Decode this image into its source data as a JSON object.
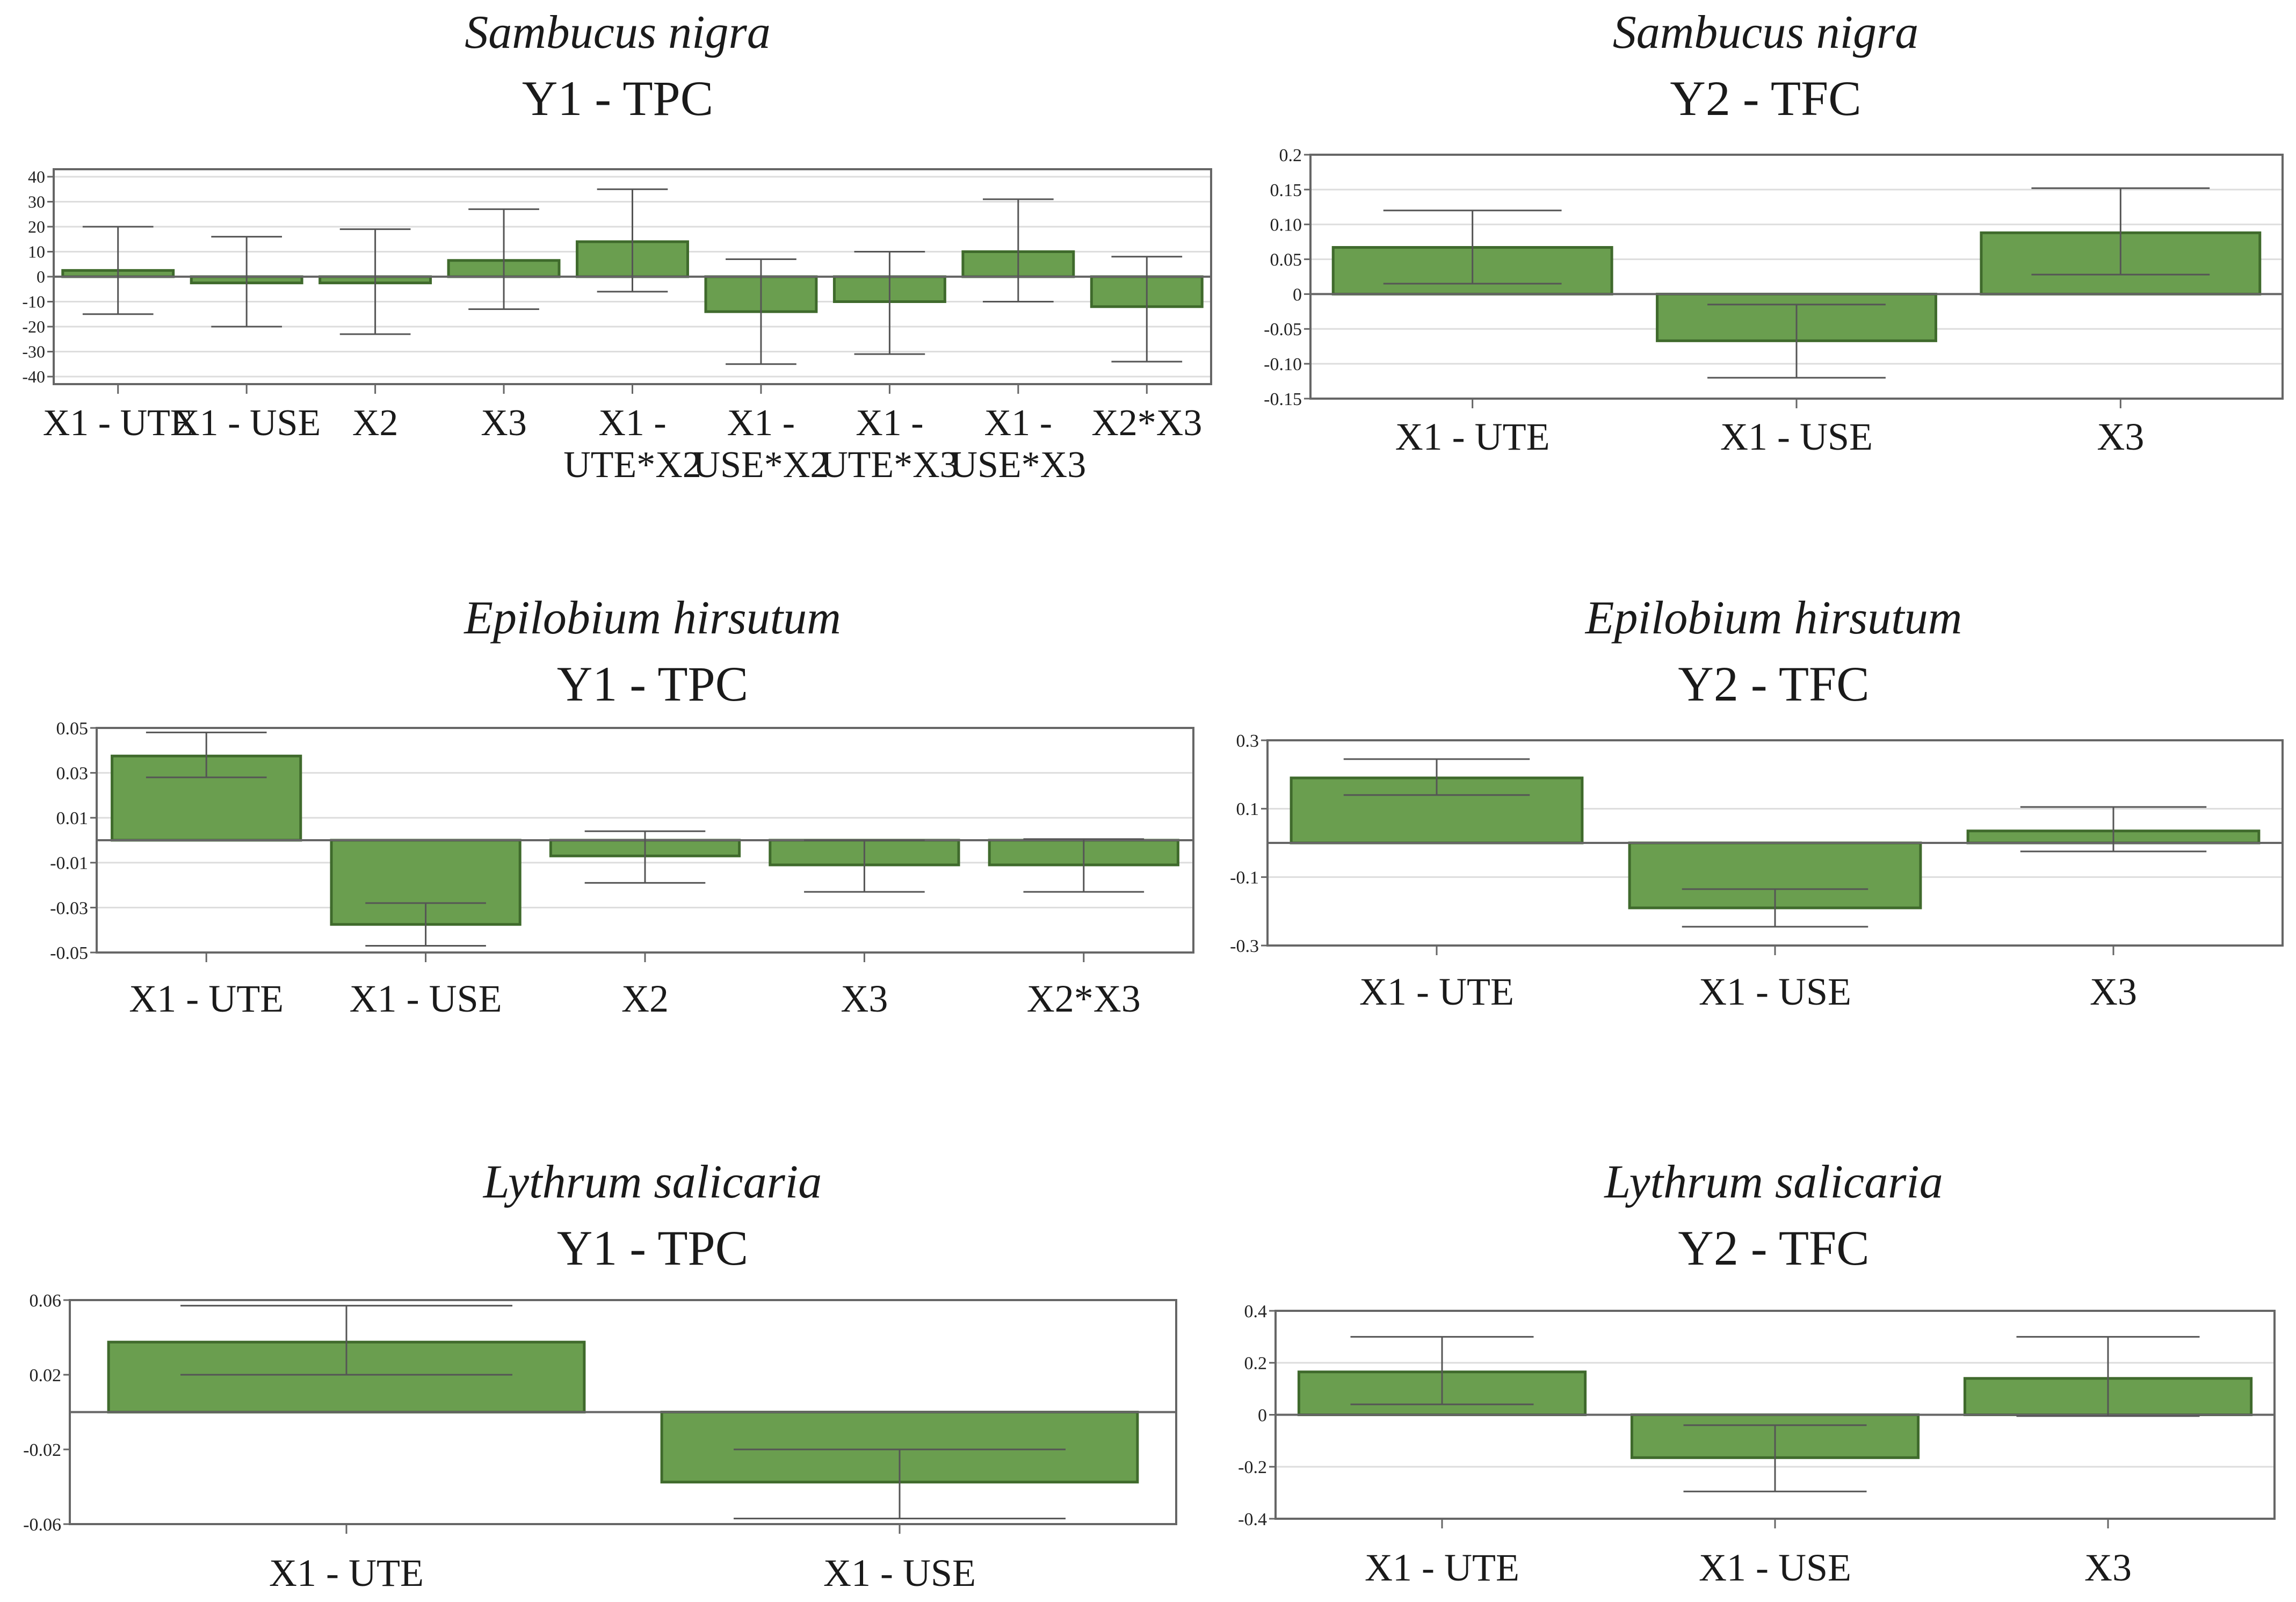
{
  "colors": {
    "bar_fill": "#6a9e4f",
    "bar_stroke": "#3f6a2c",
    "frame": "#666666",
    "grid": "#dddddd",
    "whisker": "#555555"
  },
  "chart_data": [
    {
      "type": "bar",
      "title": "Sambucus nigra",
      "subtitle": "Y1 - TPC",
      "xlabel": "",
      "ylabel": "",
      "grid": true,
      "ylim": [
        -43,
        43
      ],
      "yticks": [
        40,
        30,
        20,
        10,
        0,
        -10,
        -20,
        -30,
        -40
      ],
      "ytick_labels": [
        "40",
        "30",
        "20",
        "10",
        "0",
        "-10",
        "-20",
        "-30",
        "-40"
      ],
      "categories": [
        "X1 - UTE",
        "X1 - USE",
        "X2",
        "X3",
        "X1 - UTE*X2",
        "X1 - USE*X2",
        "X1 - UTE*X3",
        "X1 - USE*X3",
        "X2*X3"
      ],
      "category_lines": [
        [
          "X1 - UTE"
        ],
        [
          "X1 - USE"
        ],
        [
          "X2"
        ],
        [
          "X3"
        ],
        [
          "X1 -",
          "UTE*X2"
        ],
        [
          "X1 -",
          "USE*X2"
        ],
        [
          "X1 -",
          "UTE*X3"
        ],
        [
          "X1 -",
          "USE*X3"
        ],
        [
          "X2*X3"
        ]
      ],
      "values": [
        2.5,
        -2.5,
        -2.5,
        6.5,
        14,
        -14,
        -10,
        10,
        -12
      ],
      "err_low": [
        -15,
        -20,
        -23,
        -13,
        -6,
        -35,
        -31,
        -10,
        -34
      ],
      "err_high": [
        20,
        16,
        19,
        27,
        35,
        7,
        10,
        31,
        8
      ]
    },
    {
      "type": "bar",
      "title": "Sambucus nigra",
      "subtitle": "Y2 - TFC",
      "xlabel": "",
      "ylabel": "",
      "grid": true,
      "ylim": [
        -0.15,
        0.2
      ],
      "yticks": [
        0.2,
        0.15,
        0.1,
        0.05,
        0,
        -0.05,
        -0.1,
        -0.15
      ],
      "ytick_labels": [
        "0.2",
        "0.15",
        "0.10",
        "0.05",
        "0",
        "-0.05",
        "-0.10",
        "-0.15"
      ],
      "categories": [
        "X1 - UTE",
        "X1 - USE",
        "X3"
      ],
      "category_lines": [
        [
          "X1 - UTE"
        ],
        [
          "X1 - USE"
        ],
        [
          "X3"
        ]
      ],
      "values": [
        0.067,
        -0.067,
        0.088
      ],
      "err_low": [
        0.015,
        -0.12,
        0.028
      ],
      "err_high": [
        0.12,
        -0.015,
        0.152
      ]
    },
    {
      "type": "bar",
      "title": "Epilobium hirsutum",
      "subtitle": "Y1 - TPC",
      "xlabel": "",
      "ylabel": "",
      "grid": true,
      "ylim": [
        -0.05,
        0.05
      ],
      "yticks": [
        0.05,
        0.03,
        0.01,
        -0.01,
        -0.03,
        -0.05
      ],
      "ytick_labels": [
        "0.05",
        "0.03",
        "0.01",
        "-0.01",
        "-0.03",
        "-0.05"
      ],
      "categories": [
        "X1 - UTE",
        "X1 - USE",
        "X2",
        "X3",
        "X2*X3"
      ],
      "category_lines": [
        [
          "X1 - UTE"
        ],
        [
          "X1 - USE"
        ],
        [
          "X2"
        ],
        [
          "X3"
        ],
        [
          "X2*X3"
        ]
      ],
      "values": [
        0.0375,
        -0.0375,
        -0.007,
        -0.011,
        -0.011
      ],
      "err_low": [
        0.028,
        -0.047,
        -0.019,
        -0.023,
        -0.023
      ],
      "err_high": [
        0.048,
        -0.028,
        0.004,
        0.0,
        0.0005
      ]
    },
    {
      "type": "bar",
      "title": "Epilobium hirsutum",
      "subtitle": "Y2 - TFC",
      "xlabel": "",
      "ylabel": "",
      "grid": true,
      "ylim": [
        -0.3,
        0.3
      ],
      "yticks": [
        0.3,
        0.1,
        -0.1,
        -0.3
      ],
      "ytick_labels": [
        "0.3",
        "0.1",
        "-0.1",
        "-0.3"
      ],
      "categories": [
        "X1 - UTE",
        "X1 - USE",
        "X3"
      ],
      "category_lines": [
        [
          "X1 - UTE"
        ],
        [
          "X1 - USE"
        ],
        [
          "X3"
        ]
      ],
      "values": [
        0.19,
        -0.19,
        0.035
      ],
      "err_low": [
        0.14,
        -0.245,
        -0.025
      ],
      "err_high": [
        0.245,
        -0.135,
        0.105
      ]
    },
    {
      "type": "bar",
      "title": "Lythrum salicaria",
      "subtitle": "Y1 - TPC",
      "xlabel": "",
      "ylabel": "",
      "grid": false,
      "ylim": [
        -0.06,
        0.06
      ],
      "yticks": [
        0.06,
        0.02,
        -0.02,
        -0.06
      ],
      "ytick_labels": [
        "0.06",
        "0.02",
        "-0.02",
        "-0.06"
      ],
      "categories": [
        "X1 - UTE",
        "X1 - USE"
      ],
      "category_lines": [
        [
          "X1 - UTE"
        ],
        [
          "X1 - USE"
        ]
      ],
      "values": [
        0.0375,
        -0.0375
      ],
      "err_low": [
        0.02,
        -0.057
      ],
      "err_high": [
        0.057,
        -0.02
      ]
    },
    {
      "type": "bar",
      "title": "Lythrum salicaria",
      "subtitle": "Y2 - TFC",
      "xlabel": "",
      "ylabel": "",
      "grid": true,
      "ylim": [
        -0.4,
        0.4
      ],
      "yticks": [
        0.4,
        0.2,
        0,
        -0.2,
        -0.4
      ],
      "ytick_labels": [
        "0.4",
        "0.2",
        "0",
        "-0.2",
        "-0.4"
      ],
      "categories": [
        "X1 - UTE",
        "X1 - USE",
        "X3"
      ],
      "category_lines": [
        [
          "X1 - UTE"
        ],
        [
          "X1 - USE"
        ],
        [
          "X3"
        ]
      ],
      "values": [
        0.165,
        -0.165,
        0.14
      ],
      "err_low": [
        0.04,
        -0.295,
        -0.005
      ],
      "err_high": [
        0.3,
        -0.04,
        0.3
      ]
    }
  ]
}
